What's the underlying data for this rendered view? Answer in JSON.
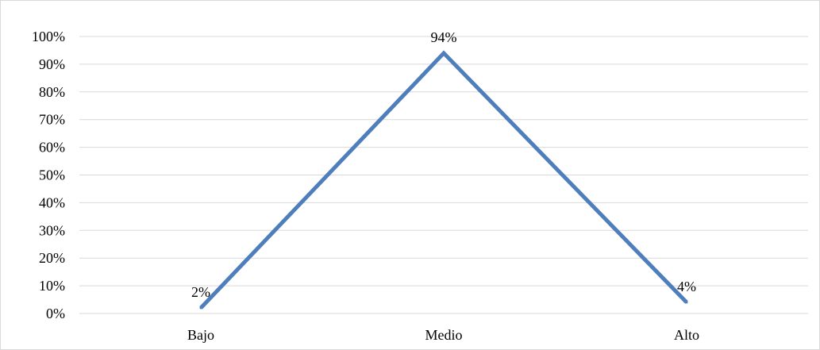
{
  "chart_data": {
    "type": "line",
    "categories": [
      "Bajo",
      "Medio",
      "Alto"
    ],
    "series": [
      {
        "values": [
          2,
          94,
          4
        ],
        "data_labels": [
          "2%",
          "94%",
          "4%"
        ]
      }
    ],
    "y_tick_labels": [
      "0%",
      "10%",
      "20%",
      "30%",
      "40%",
      "50%",
      "60%",
      "70%",
      "80%",
      "90%",
      "100%"
    ],
    "ylim": [
      0,
      100
    ],
    "grid": true,
    "legend": "none",
    "colors": {
      "line": "#4f7ebd",
      "grid": "#d9d9d9",
      "border": "#d9d9d9"
    }
  }
}
